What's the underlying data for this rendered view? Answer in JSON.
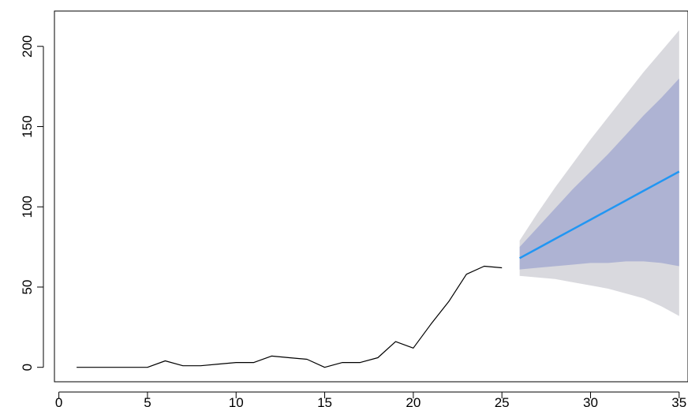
{
  "chart_data": {
    "type": "line",
    "title": "",
    "xlabel": "",
    "ylabel": "",
    "xlim": [
      -0.25,
      35.5
    ],
    "ylim": [
      -9,
      222
    ],
    "x_ticks": [
      0,
      5,
      10,
      15,
      20,
      25,
      30,
      35
    ],
    "y_ticks": [
      0,
      50,
      100,
      150,
      200
    ],
    "grid": false,
    "legend": "none",
    "series": [
      {
        "kind": "observed",
        "color": "#000000",
        "x": [
          1,
          2,
          3,
          4,
          5,
          6,
          7,
          8,
          9,
          10,
          11,
          12,
          13,
          14,
          15,
          16,
          17,
          18,
          19,
          20,
          21,
          22,
          23,
          24,
          25
        ],
        "values": [
          0,
          0,
          0,
          0,
          0,
          4,
          1,
          1,
          2,
          3,
          3,
          7,
          6,
          5,
          0,
          3,
          3,
          6,
          16,
          12,
          27,
          41,
          58,
          63,
          62
        ]
      },
      {
        "kind": "forecast",
        "color": "#2196f3",
        "x": [
          26,
          27,
          28,
          29,
          30,
          31,
          32,
          33,
          34,
          35
        ],
        "values": [
          68,
          74,
          80,
          86,
          92,
          98,
          104,
          110,
          116,
          122
        ]
      }
    ],
    "intervals": [
      {
        "level": "95%",
        "color": "#d9d9de",
        "x": [
          26,
          27,
          28,
          29,
          30,
          31,
          32,
          33,
          34,
          35
        ],
        "lower": [
          57,
          56,
          55,
          53,
          51,
          49,
          46,
          43,
          38,
          32
        ],
        "upper": [
          79,
          96,
          112,
          127,
          142,
          156,
          170,
          184,
          197,
          210
        ]
      },
      {
        "level": "80%",
        "color": "#aeb3d3",
        "x": [
          26,
          27,
          28,
          29,
          30,
          31,
          32,
          33,
          34,
          35
        ],
        "lower": [
          61,
          62,
          63,
          64,
          65,
          65,
          66,
          66,
          65,
          63
        ],
        "upper": [
          75,
          87,
          99,
          111,
          122,
          133,
          145,
          157,
          168,
          180
        ]
      }
    ]
  }
}
